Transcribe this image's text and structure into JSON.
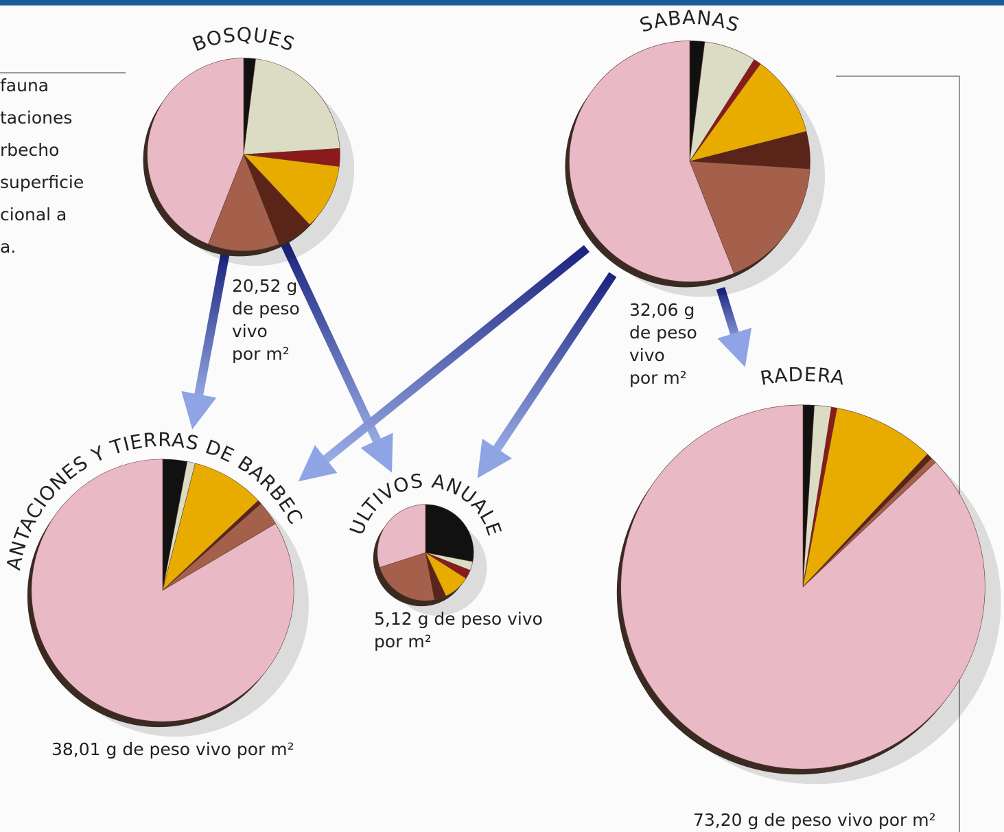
{
  "side_text": [
    "fauna",
    "taciones",
    "rbecho",
    "superficie",
    "cional a",
    "a."
  ],
  "chart_data": [
    {
      "type": "pie",
      "title": "BOSQUES",
      "total": 20.52,
      "total_label": "20,52 g de peso vivo por m²",
      "values": [
        2,
        22,
        3,
        11,
        6,
        12,
        44
      ],
      "colors": [
        "#111111",
        "#dcdcc4",
        "#8b1a1a",
        "#e8ac00",
        "#5a2418",
        "#a5604c",
        "#e9b9c5"
      ]
    },
    {
      "type": "pie",
      "title": "SABANAS",
      "total": 32.06,
      "total_label": "32,06 g de peso vivo por m²",
      "values": [
        2,
        7,
        1,
        11,
        5,
        18,
        56
      ],
      "colors": [
        "#111111",
        "#dcdcc4",
        "#8b1a1a",
        "#e8ac00",
        "#5a2418",
        "#a5604c",
        "#e9b9c5"
      ]
    },
    {
      "type": "pie",
      "title": "PLANTACIONES Y TIERRAS DE BARBECHO",
      "total": 38.01,
      "total_label": "38,01 g de peso vivo por m²",
      "values": [
        3,
        1,
        9,
        0.5,
        3,
        83.5
      ],
      "colors": [
        "#111111",
        "#dcdcc4",
        "#e8ac00",
        "#5a2418",
        "#a5604c",
        "#e9b9c5"
      ]
    },
    {
      "type": "pie",
      "title": "CULTIVOS ANUALES",
      "total": 5.12,
      "total_label": "5,12 g de peso vivo por m²",
      "values": [
        28,
        3,
        3,
        9,
        4,
        23,
        30
      ],
      "colors": [
        "#111111",
        "#dcdcc4",
        "#8b1a1a",
        "#e8ac00",
        "#5a2418",
        "#a5604c",
        "#e9b9c5"
      ]
    },
    {
      "type": "pie",
      "title": "PRADERAS",
      "total": 73.2,
      "total_label": "73,20 g de peso vivo por m²",
      "values": [
        1,
        1.5,
        0.5,
        9,
        0.5,
        0.5,
        87
      ],
      "colors": [
        "#111111",
        "#dcdcc4",
        "#8b1a1a",
        "#e8ac00",
        "#5a2418",
        "#a5604c",
        "#e9b9c5"
      ]
    }
  ]
}
